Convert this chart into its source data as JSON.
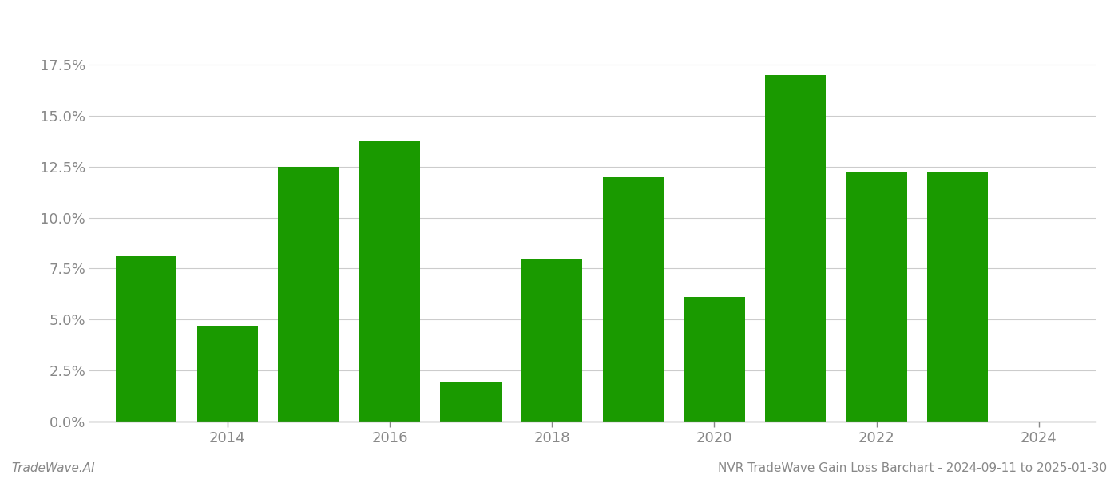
{
  "years": [
    2013,
    2014,
    2015,
    2016,
    2017,
    2018,
    2019,
    2020,
    2021,
    2022,
    2023
  ],
  "values": [
    0.081,
    0.047,
    0.125,
    0.138,
    0.019,
    0.08,
    0.12,
    0.061,
    0.17,
    0.122,
    0.122
  ],
  "bar_color": "#1a9a00",
  "background_color": "#ffffff",
  "grid_color": "#cccccc",
  "axis_color": "#888888",
  "tick_color": "#888888",
  "ylim": [
    0.0,
    0.195
  ],
  "yticks": [
    0.0,
    0.025,
    0.05,
    0.075,
    0.1,
    0.125,
    0.15,
    0.175
  ],
  "xtick_labels": [
    "2014",
    "2016",
    "2018",
    "2020",
    "2022",
    "2024"
  ],
  "xtick_positions": [
    2014,
    2016,
    2018,
    2020,
    2022,
    2024
  ],
  "xlim": [
    2012.3,
    2024.7
  ],
  "footer_left": "TradeWave.AI",
  "footer_right": "NVR TradeWave Gain Loss Barchart - 2024-09-11 to 2025-01-30",
  "bar_width": 0.75,
  "footer_fontsize": 11,
  "tick_fontsize": 13
}
